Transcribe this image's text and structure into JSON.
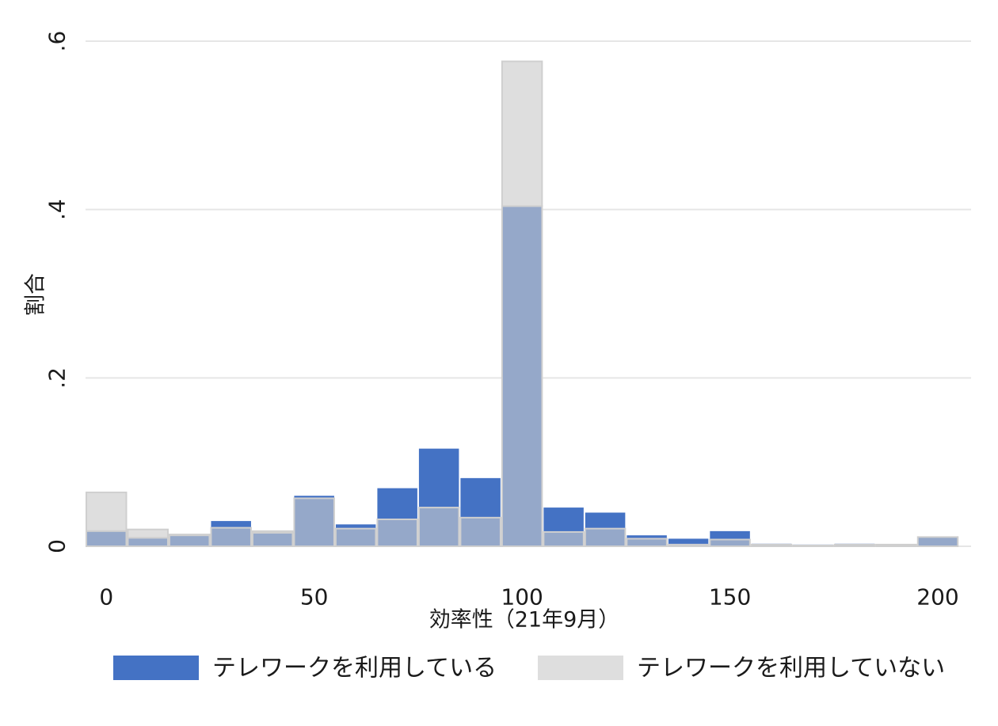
{
  "chart_data": {
    "type": "bar",
    "xlabel": "効率性（21年9月）",
    "ylabel": "割合",
    "x_ticks": [
      {
        "value": 0,
        "label": "0"
      },
      {
        "value": 50,
        "label": "50"
      },
      {
        "value": 100,
        "label": "100"
      },
      {
        "value": 150,
        "label": "150"
      },
      {
        "value": 200,
        "label": "200"
      }
    ],
    "y_ticks": [
      {
        "value": 0,
        "label": "0"
      },
      {
        "value": 0.2,
        "label": ".2"
      },
      {
        "value": 0.4,
        "label": ".4"
      },
      {
        "value": 0.6,
        "label": ".6"
      }
    ],
    "xlim": [
      -5,
      208
    ],
    "ylim": [
      0,
      0.6
    ],
    "grid": true,
    "legend_position": "bottom",
    "bins": [
      [
        -5,
        5
      ],
      [
        5,
        15
      ],
      [
        15,
        25
      ],
      [
        25,
        35
      ],
      [
        35,
        45
      ],
      [
        45,
        55
      ],
      [
        55,
        65
      ],
      [
        65,
        75
      ],
      [
        75,
        85
      ],
      [
        85,
        95
      ],
      [
        95,
        105
      ],
      [
        105,
        115
      ],
      [
        115,
        125
      ],
      [
        125,
        135
      ],
      [
        135,
        145
      ],
      [
        145,
        155
      ],
      [
        155,
        165
      ],
      [
        165,
        175
      ],
      [
        175,
        185
      ],
      [
        185,
        195
      ],
      [
        195,
        205
      ]
    ],
    "series": [
      {
        "name": "テレワークを利用している",
        "color": "#4472C4",
        "values": [
          0.018,
          0.01,
          0.013,
          0.03,
          0.016,
          0.06,
          0.026,
          0.069,
          0.116,
          0.081,
          0.404,
          0.046,
          0.04,
          0.013,
          0.009,
          0.018,
          0.003,
          0.002,
          0.003,
          0.001,
          0.011
        ]
      },
      {
        "name": "テレワークを利用していない",
        "color": "#DEDEDE",
        "values": [
          0.064,
          0.02,
          0.014,
          0.022,
          0.018,
          0.057,
          0.021,
          0.032,
          0.046,
          0.034,
          0.576,
          0.017,
          0.021,
          0.009,
          0.002,
          0.008,
          0.002,
          0.001,
          0.002,
          0.002,
          0.011
        ]
      }
    ],
    "overlap_color": "#95A8C9"
  }
}
